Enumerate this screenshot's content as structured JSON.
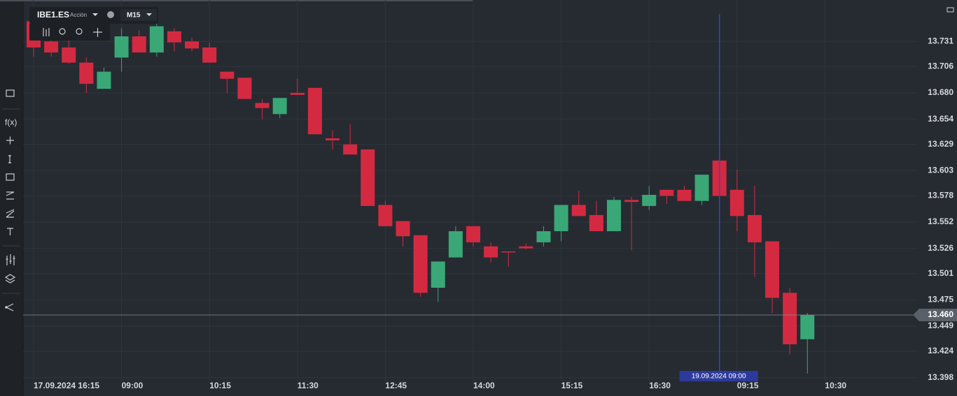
{
  "chart_data": {
    "type": "candlestick",
    "symbol": "IBE1.ES",
    "instrument_type": "Acción",
    "timeframe": "M15",
    "categories": [
      "17.09.2024 16:15",
      null,
      null,
      null,
      null,
      "09:00",
      null,
      null,
      null,
      null,
      "10:15",
      null,
      null,
      null,
      null,
      "11:30",
      null,
      null,
      null,
      null,
      "12:45",
      null,
      null,
      null,
      null,
      "14:00",
      null,
      null,
      null,
      null,
      "15:15",
      null,
      null,
      null,
      null,
      "16:30",
      null,
      null,
      null,
      null,
      "09:15",
      null,
      null,
      null,
      null,
      "10:30"
    ],
    "open": [
      13.751,
      13.731,
      13.725,
      13.71,
      13.684,
      13.715,
      13.736,
      13.72,
      13.741,
      13.731,
      13.725,
      13.701,
      13.695,
      13.67,
      13.659,
      13.68,
      13.685,
      13.635,
      13.629,
      13.624,
      13.569,
      13.553,
      13.539,
      13.487,
      13.517,
      13.548,
      13.528,
      13.523,
      13.528,
      13.532,
      13.543,
      13.569,
      13.559,
      13.543,
      13.574,
      13.568,
      13.584,
      13.584,
      13.573,
      13.613,
      13.584,
      13.559,
      13.533,
      13.482,
      13.436,
      null
    ],
    "high": [
      13.755,
      13.736,
      13.732,
      13.715,
      13.705,
      13.744,
      13.742,
      13.751,
      13.744,
      13.735,
      13.73,
      13.701,
      13.695,
      13.674,
      13.675,
      13.694,
      13.685,
      13.643,
      13.649,
      13.624,
      13.573,
      13.553,
      13.539,
      13.513,
      13.548,
      13.548,
      13.532,
      13.523,
      13.531,
      13.548,
      13.569,
      13.583,
      13.573,
      13.577,
      13.577,
      13.588,
      13.584,
      13.588,
      13.599,
      13.629,
      13.604,
      13.588,
      13.533,
      13.487,
      13.462,
      null
    ],
    "low": [
      13.716,
      13.716,
      13.709,
      13.68,
      13.684,
      13.701,
      13.72,
      13.716,
      13.721,
      13.721,
      13.71,
      13.68,
      13.674,
      13.654,
      13.655,
      13.678,
      13.639,
      13.624,
      13.619,
      13.568,
      13.548,
      13.528,
      13.478,
      13.473,
      13.517,
      13.528,
      13.512,
      13.508,
      13.525,
      13.528,
      13.533,
      13.558,
      13.543,
      13.543,
      13.524,
      13.564,
      13.57,
      13.573,
      13.569,
      13.573,
      13.543,
      13.498,
      13.462,
      13.421,
      13.402,
      null
    ],
    "close": [
      13.725,
      13.72,
      13.71,
      13.689,
      13.701,
      13.736,
      13.72,
      13.746,
      13.73,
      13.724,
      13.71,
      13.694,
      13.674,
      13.665,
      13.675,
      13.678,
      13.639,
      13.633,
      13.619,
      13.568,
      13.548,
      13.538,
      13.482,
      13.513,
      13.543,
      13.532,
      13.517,
      13.522,
      13.526,
      13.543,
      13.569,
      13.558,
      13.543,
      13.574,
      13.572,
      13.579,
      13.578,
      13.573,
      13.599,
      13.578,
      13.558,
      13.532,
      13.477,
      13.431,
      13.46,
      null
    ],
    "up_color": "#3aa776",
    "down_color": "#d42a41",
    "ylim": [
      13.395,
      13.772
    ],
    "yticks": [
      13.731,
      13.706,
      {
        "value": 13.68,
        "label": "13.680"
      },
      13.654,
      13.629,
      13.603,
      13.578,
      13.552,
      13.526,
      13.501,
      13.475,
      13.449,
      13.424,
      13.398
    ],
    "grid": true,
    "current_price": {
      "value": 13.46,
      "label": "13.460"
    },
    "crosshair_label": "19.09.2024 09:00"
  }
}
